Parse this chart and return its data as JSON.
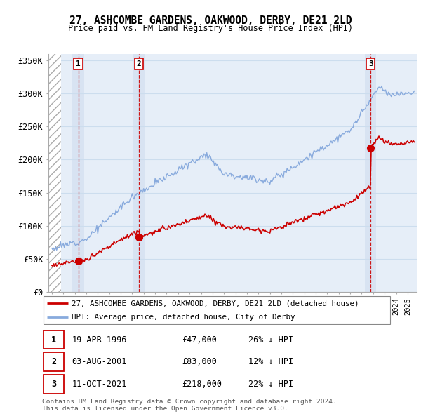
{
  "title": "27, ASHCOMBE GARDENS, OAKWOOD, DERBY, DE21 2LD",
  "subtitle": "Price paid vs. HM Land Registry's House Price Index (HPI)",
  "ylim": [
    0,
    360000
  ],
  "yticks": [
    0,
    50000,
    100000,
    150000,
    200000,
    250000,
    300000,
    350000
  ],
  "ytick_labels": [
    "£0",
    "£50K",
    "£100K",
    "£150K",
    "£200K",
    "£250K",
    "£300K",
    "£350K"
  ],
  "purchases": [
    {
      "year": 1996.3,
      "price": 47000,
      "label": "1"
    },
    {
      "year": 2001.6,
      "price": 83000,
      "label": "2"
    },
    {
      "year": 2021.78,
      "price": 218000,
      "label": "3"
    }
  ],
  "legend_property": "27, ASHCOMBE GARDENS, OAKWOOD, DERBY, DE21 2LD (detached house)",
  "legend_hpi": "HPI: Average price, detached house, City of Derby",
  "table": [
    {
      "num": "1",
      "date": "19-APR-1996",
      "price": "£47,000",
      "hpi": "26% ↓ HPI"
    },
    {
      "num": "2",
      "date": "03-AUG-2001",
      "price": "£83,000",
      "hpi": "12% ↓ HPI"
    },
    {
      "num": "3",
      "date": "11-OCT-2021",
      "price": "£218,000",
      "hpi": "22% ↓ HPI"
    }
  ],
  "footer": "Contains HM Land Registry data © Crown copyright and database right 2024.\nThis data is licensed under the Open Government Licence v3.0.",
  "line_color_property": "#cc0000",
  "line_color_hpi": "#88aadd",
  "bg_hatch_color": "#cccccc",
  "grid_color": "#ccddee",
  "purchase_dot_color": "#cc0000",
  "vline_color": "#cc0000",
  "xlim": [
    1993.7,
    2025.8
  ],
  "hatch_end": 1994.8
}
